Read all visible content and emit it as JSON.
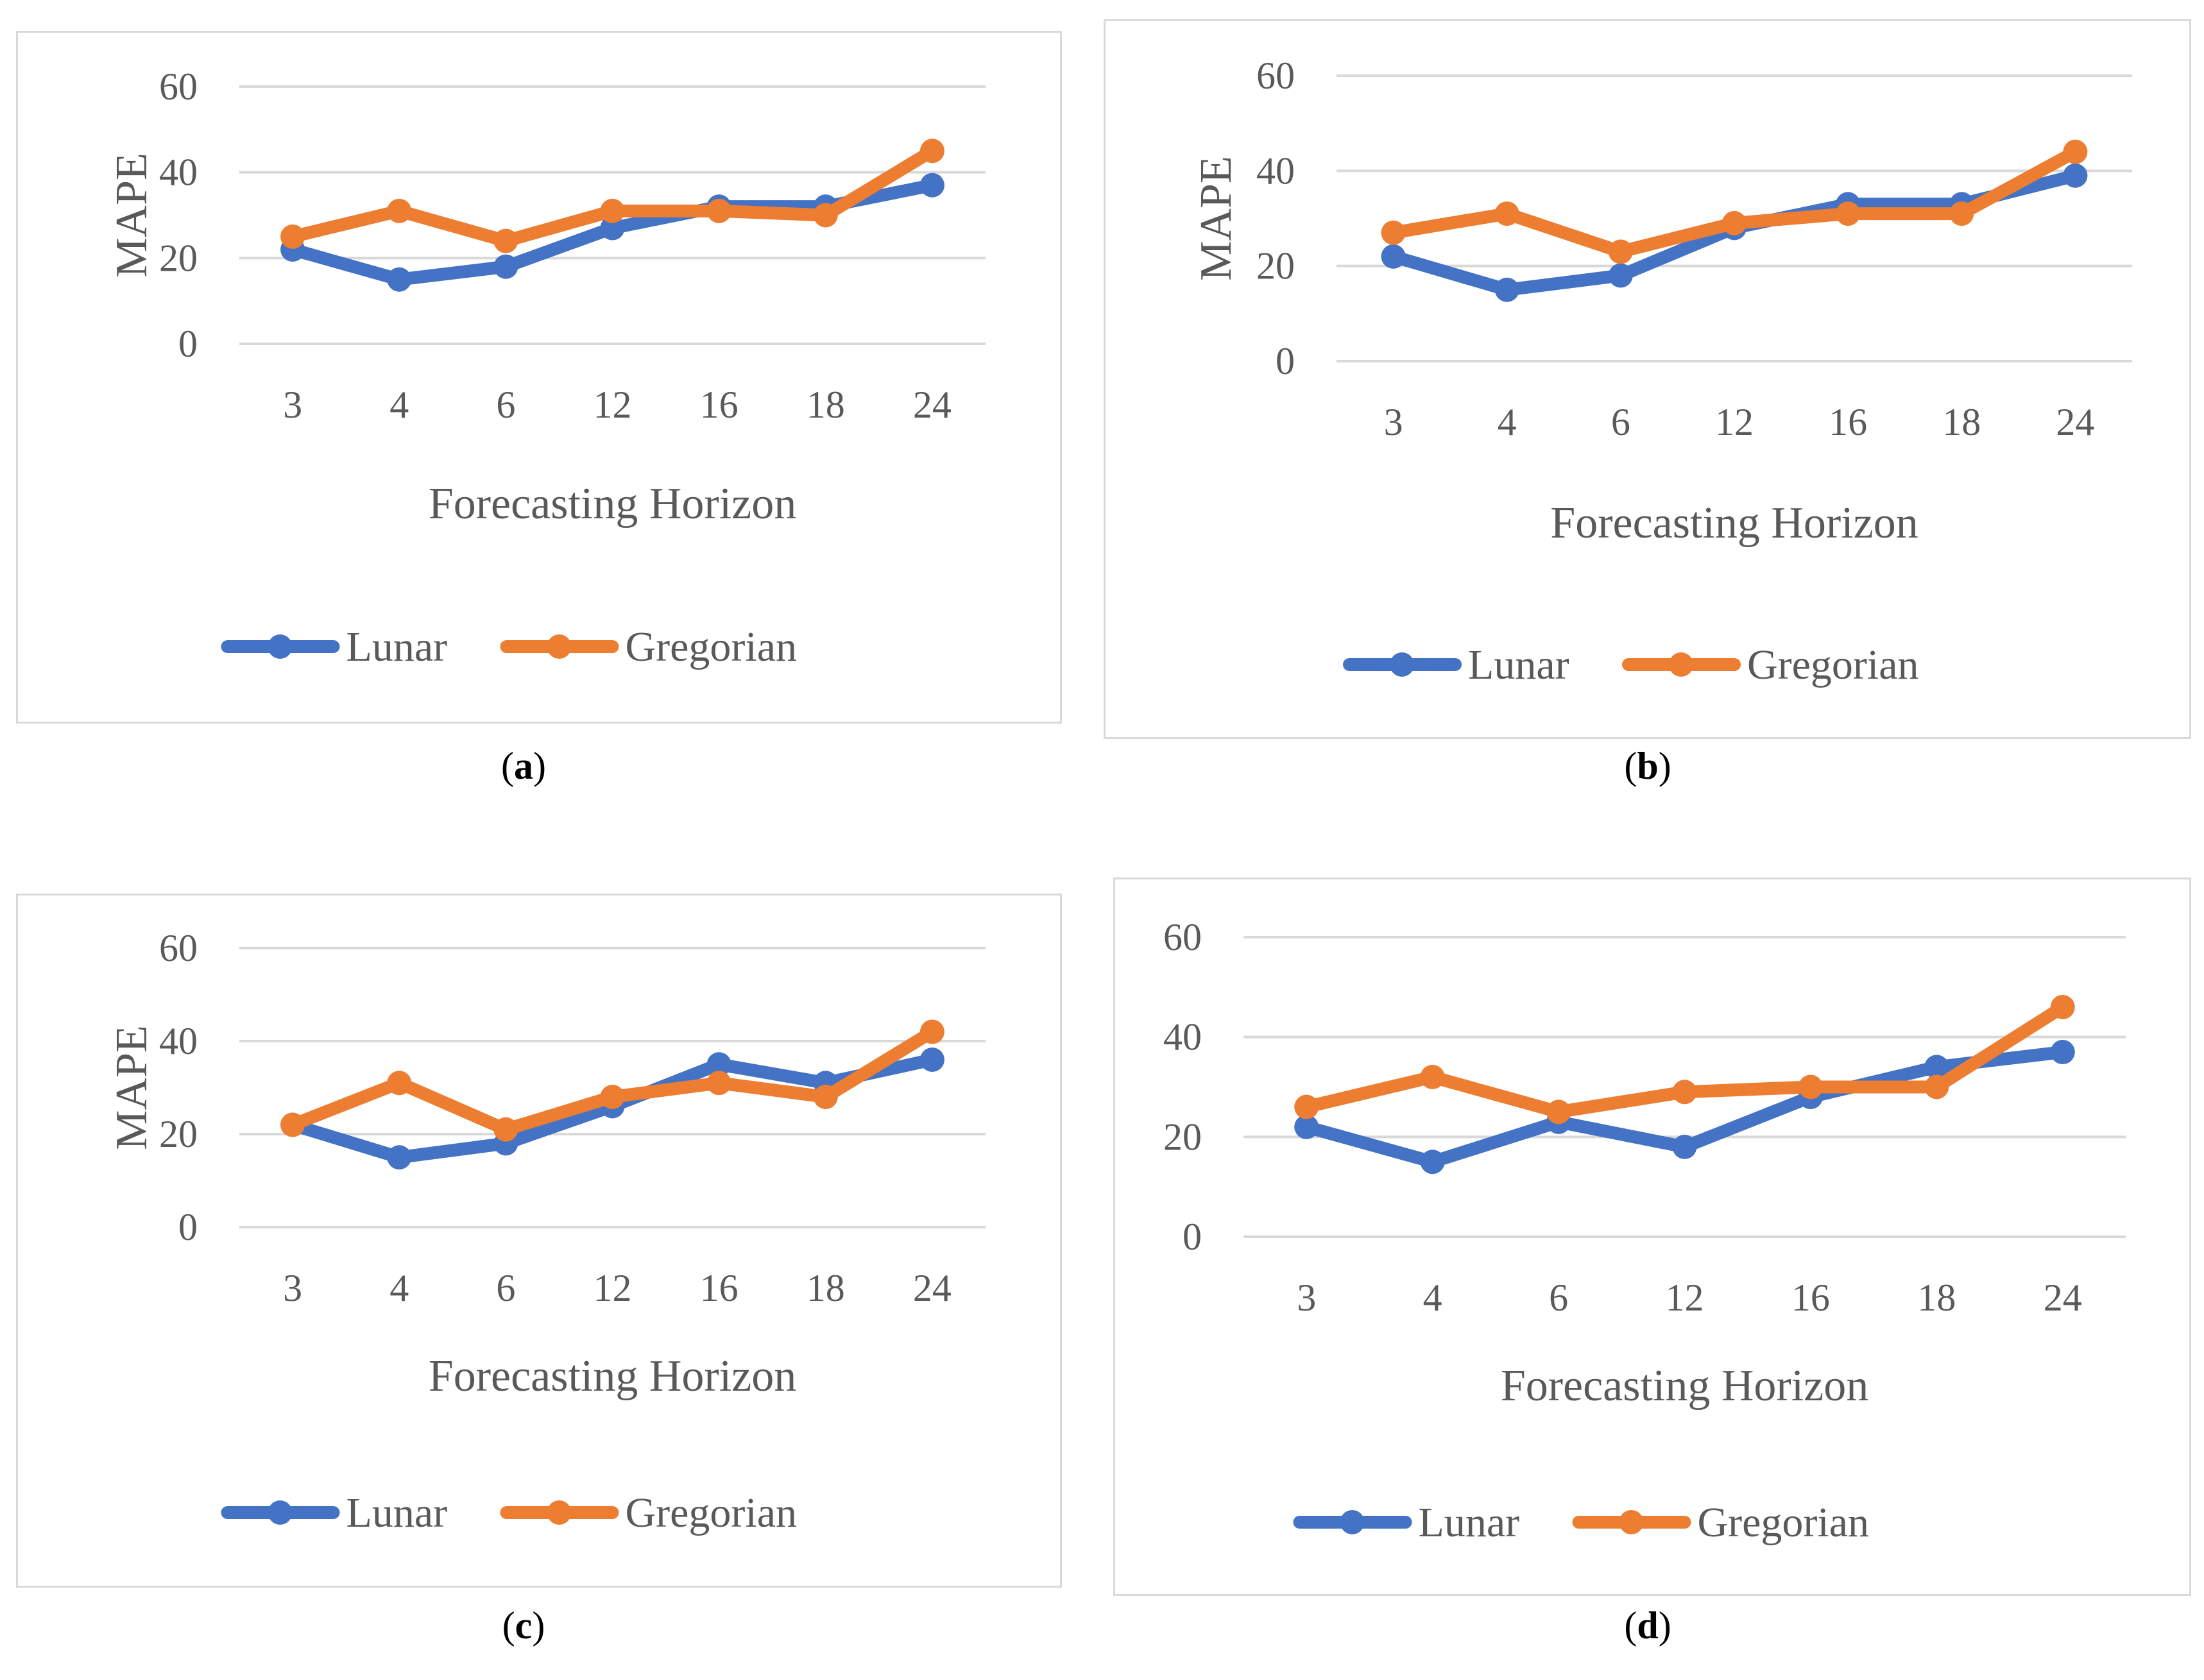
{
  "colors": {
    "lunar": "#4472c4",
    "gregorian": "#ed7d31",
    "grid": "#d9d9d9",
    "text": "#595959"
  },
  "chart_data": [
    {
      "type": "line",
      "panel_label": "a",
      "categories": [
        "3",
        "4",
        "6",
        "12",
        "16",
        "18",
        "24"
      ],
      "xlabel": "Forecasting Horizon",
      "ylabel": "MAPE",
      "ylim": [
        0,
        60
      ],
      "yticks": [
        "0",
        "20",
        "40",
        "60"
      ],
      "grid": true,
      "legend": "bottom",
      "series": [
        {
          "name": "Lunar",
          "values": [
            22,
            15,
            18,
            27,
            32,
            32,
            37
          ]
        },
        {
          "name": "Gregorian",
          "values": [
            25,
            31,
            24,
            31,
            31,
            30,
            45
          ]
        }
      ]
    },
    {
      "type": "line",
      "panel_label": "b",
      "categories": [
        "3",
        "4",
        "6",
        "12",
        "16",
        "18",
        "24"
      ],
      "xlabel": "Forecasting Horizon",
      "ylabel": "MAPE",
      "ylim": [
        0,
        60
      ],
      "yticks": [
        "0",
        "20",
        "40",
        "60"
      ],
      "grid": true,
      "legend": "bottom",
      "series": [
        {
          "name": "Lunar",
          "values": [
            22,
            15,
            18,
            28,
            33,
            33,
            39
          ]
        },
        {
          "name": "Gregorian",
          "values": [
            27,
            31,
            23,
            29,
            31,
            31,
            44
          ]
        }
      ]
    },
    {
      "type": "line",
      "panel_label": "c",
      "categories": [
        "3",
        "4",
        "6",
        "12",
        "16",
        "18",
        "24"
      ],
      "xlabel": "Forecasting Horizon",
      "ylabel": "MAPE",
      "ylim": [
        0,
        60
      ],
      "yticks": [
        "0",
        "20",
        "40",
        "60"
      ],
      "grid": true,
      "legend": "bottom",
      "series": [
        {
          "name": "Lunar",
          "values": [
            22,
            15,
            18,
            26,
            35,
            31,
            36
          ]
        },
        {
          "name": "Gregorian",
          "values": [
            22,
            31,
            21,
            28,
            31,
            28,
            42
          ]
        }
      ]
    },
    {
      "type": "line",
      "panel_label": "d",
      "categories": [
        "3",
        "4",
        "6",
        "12",
        "16",
        "18",
        "24"
      ],
      "xlabel": "Forecasting Horizon",
      "ylabel": "",
      "ylim": [
        0,
        60
      ],
      "yticks": [
        "0",
        "20",
        "40",
        "60"
      ],
      "grid": true,
      "legend": "bottom",
      "series": [
        {
          "name": "Lunar",
          "values": [
            22,
            15,
            23,
            18,
            28,
            34,
            37
          ]
        },
        {
          "name": "Gregorian",
          "values": [
            26,
            32,
            25,
            29,
            30,
            30,
            46
          ]
        }
      ]
    }
  ]
}
